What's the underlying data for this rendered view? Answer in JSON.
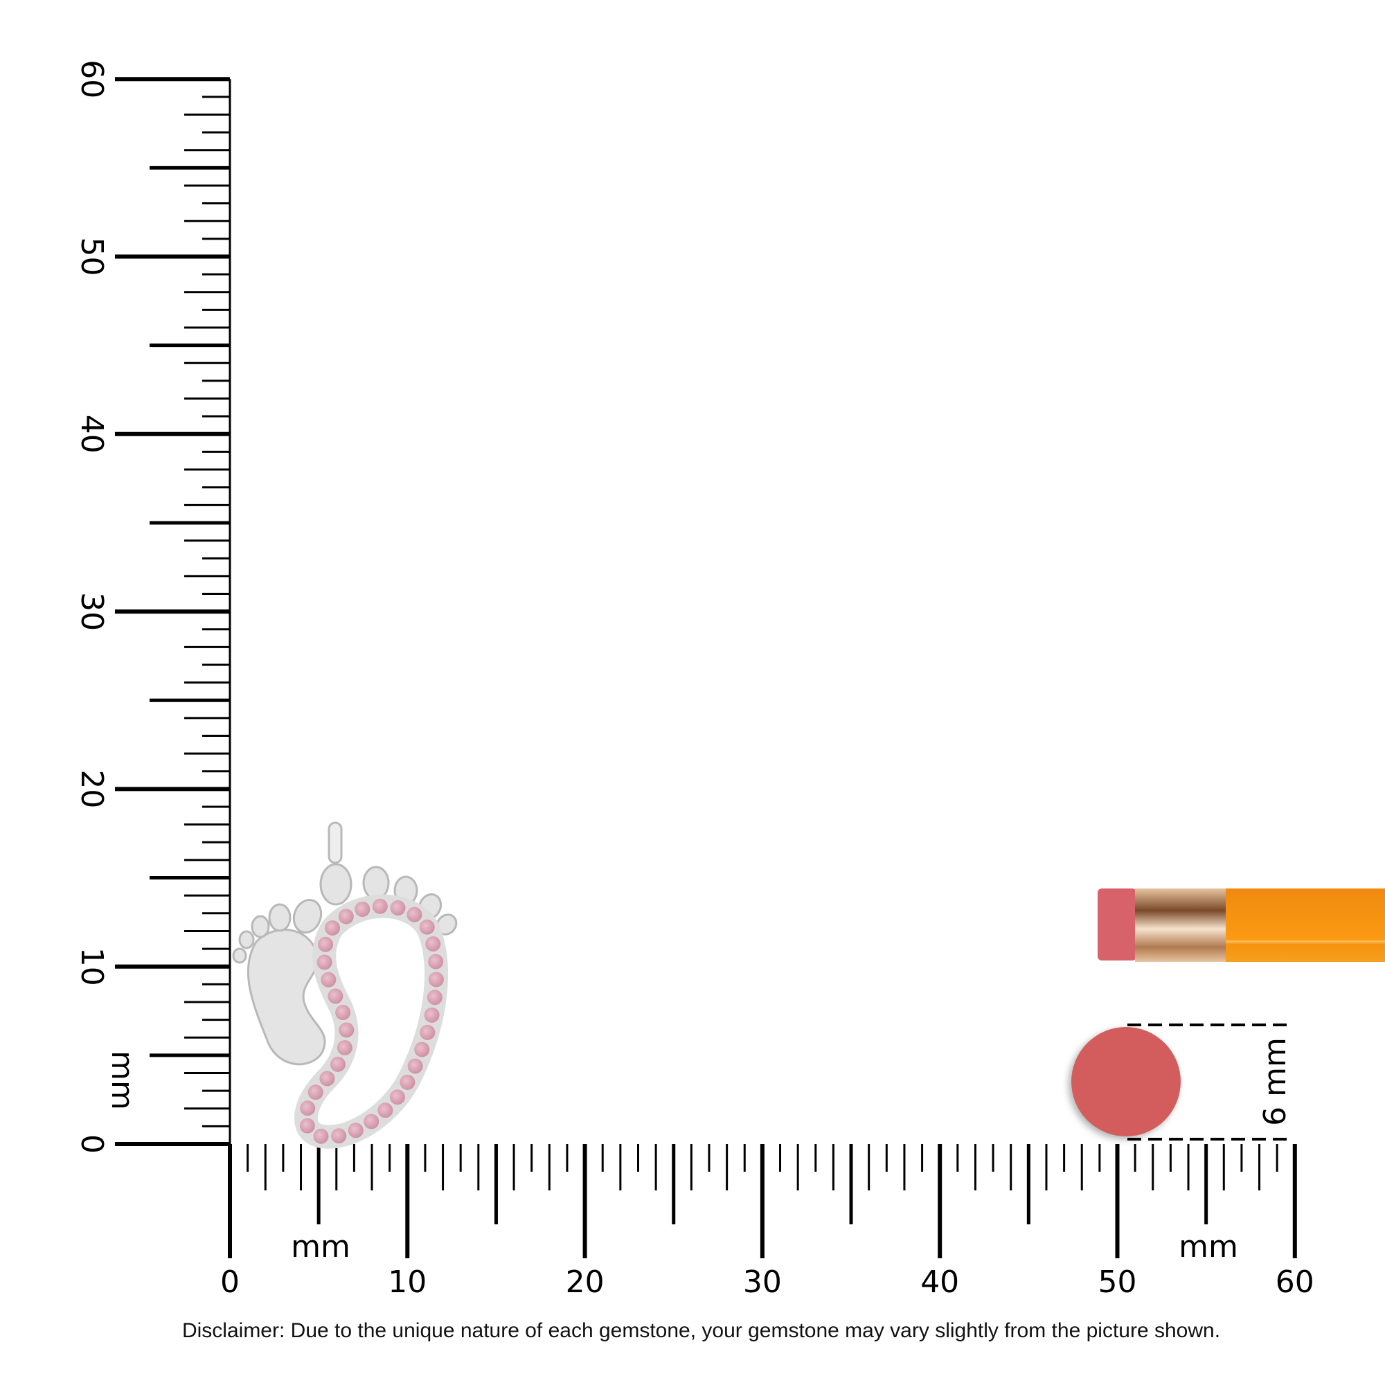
{
  "ruler": {
    "unit_label": "mm",
    "vertical_labels": [
      "0",
      "10",
      "20",
      "30",
      "40",
      "50",
      "60"
    ],
    "horizontal_labels": [
      "0",
      "10",
      "20",
      "30",
      "40",
      "50",
      "60"
    ],
    "range_mm": [
      0,
      60
    ]
  },
  "product": {
    "description_icon": "baby-feet-pendant",
    "gem_color": "#d9a3b5",
    "metal_color": "#e4e4e4"
  },
  "reference": {
    "gem_size_label": "6 mm",
    "gem_size_mm": 6,
    "gem_color": "#d35b5b",
    "pencil_color": "#f7940f"
  },
  "disclaimer": "Disclaimer: Due to the unique nature of each gemstone, your gemstone may vary slightly from the picture shown."
}
